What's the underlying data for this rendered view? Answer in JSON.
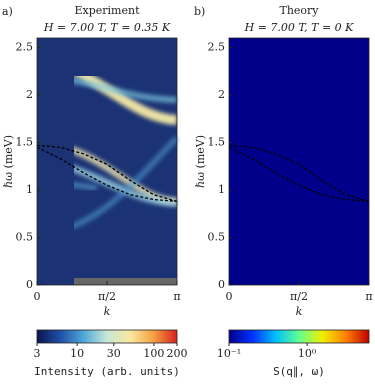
{
  "chart_data": [
    {
      "type": "heatmap",
      "panel_label": "a)",
      "title": "Experiment",
      "subtitle": "H = 7.00 T, T = 0.35 K",
      "xlabel": "k",
      "ylabel": "ℏω (meV)",
      "xlim": [
        0,
        3.1416
      ],
      "ylim": [
        0,
        2.6
      ],
      "xticks": [
        0,
        {
          "value": 1.5708,
          "label": "π/2"
        },
        {
          "value": 3.1416,
          "label": "π"
        }
      ],
      "yticks": [
        0,
        0.5,
        1,
        1.5,
        2,
        2.5
      ],
      "background": "#1b3374",
      "colorbar": {
        "label": "Intensity (arb. units)",
        "lim": [
          3,
          200
        ],
        "log": true,
        "ticks": [
          3,
          10,
          30,
          100,
          200
        ],
        "colors": [
          "#0b1550",
          "#1f4fa8",
          "#4fa8d8",
          "#c8e8d8",
          "#f8e8a0",
          "#f4a040",
          "#d82020"
        ]
      },
      "series": [
        {
          "color": "#000000",
          "x": [
            0,
            0.5236,
            1.0472,
            1.5708,
            2.0944,
            2.618,
            3.1416
          ],
          "values": [
            1.47,
            1.45,
            1.38,
            1.27,
            1.1,
            0.95,
            0.88
          ]
        },
        {
          "color": "#000000",
          "x": [
            0,
            0.5236,
            1.0472,
            1.5708,
            2.0944,
            2.618,
            3.1416
          ],
          "values": [
            1.45,
            1.33,
            1.18,
            1.05,
            0.95,
            0.9,
            0.88
          ]
        }
      ]
    },
    {
      "type": "heatmap",
      "panel_label": "b)",
      "title": "Theory",
      "subtitle": "H = 7.00 T, T = 0 K",
      "xlabel": "k",
      "ylabel": "ℏω (meV)",
      "xlim": [
        0,
        3.1416
      ],
      "ylim": [
        0,
        2.6
      ],
      "xticks": [
        0,
        {
          "value": 1.5708,
          "label": "π/2"
        },
        {
          "value": 3.1416,
          "label": "π"
        }
      ],
      "yticks": [
        0,
        0.5,
        1,
        1.5,
        2,
        2.5
      ],
      "background": "#00008a",
      "colorbar": {
        "label": "S(q∥, ω)",
        "lim": [
          0.1,
          6.2
        ],
        "log": true,
        "ticks": [
          {
            "value": 0.1,
            "label": "10⁻¹"
          },
          {
            "value": 1,
            "label": "10⁰"
          }
        ],
        "colors": [
          "#00008a",
          "#0030ff",
          "#00c0ff",
          "#60ff90",
          "#f0f000",
          "#ff8000",
          "#c00000"
        ]
      },
      "series": [
        {
          "color": "#000000",
          "x": [
            0,
            0.5236,
            1.0472,
            1.5708,
            2.0944,
            2.618,
            3.1416
          ],
          "values": [
            1.47,
            1.45,
            1.38,
            1.27,
            1.1,
            0.95,
            0.88
          ]
        },
        {
          "color": "#000000",
          "x": [
            0,
            0.5236,
            1.0472,
            1.5708,
            2.0944,
            2.618,
            3.1416
          ],
          "values": [
            1.45,
            1.33,
            1.18,
            1.05,
            0.95,
            0.9,
            0.88
          ]
        }
      ]
    }
  ]
}
